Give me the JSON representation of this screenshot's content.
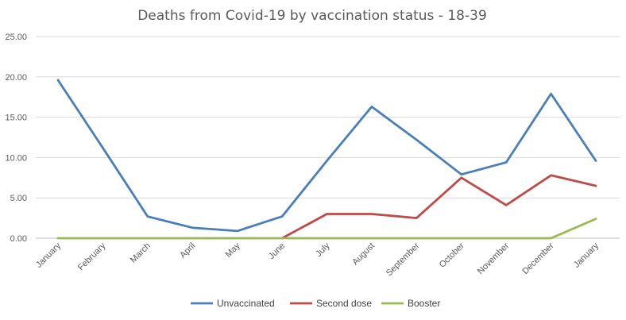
{
  "chart_data": {
    "type": "line",
    "title": "Deaths from Covid-19 by vaccination status - 18-39",
    "xlabel": "",
    "ylabel": "",
    "categories": [
      "January",
      "February",
      "March",
      "April",
      "May",
      "June",
      "July",
      "August",
      "September",
      "October",
      "November",
      "December",
      "January"
    ],
    "y_ticks": [
      "0.00",
      "5.00",
      "10.00",
      "15.00",
      "20.00",
      "25.00"
    ],
    "ylim": [
      0,
      25
    ],
    "grid": true,
    "legend_position": "bottom",
    "series": [
      {
        "name": "Unvaccinated",
        "color": "#4a7ebb",
        "values": [
          19.6,
          11.2,
          2.7,
          1.3,
          0.9,
          2.7,
          9.6,
          16.3,
          12.2,
          7.9,
          9.4,
          17.9,
          9.6
        ]
      },
      {
        "name": "Second dose",
        "color": "#be4b48",
        "values": [
          null,
          null,
          null,
          null,
          null,
          0.0,
          3.0,
          3.0,
          2.5,
          7.5,
          4.1,
          7.8,
          6.5
        ]
      },
      {
        "name": "Booster",
        "color": "#98b954",
        "values": [
          0,
          0,
          0,
          0,
          0,
          0,
          0,
          0,
          0,
          0,
          0,
          0,
          2.4
        ]
      }
    ]
  }
}
